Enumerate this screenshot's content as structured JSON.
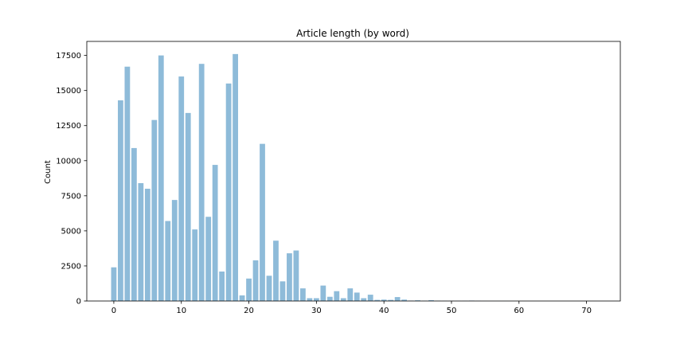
{
  "chart_data": {
    "type": "bar",
    "title": "Article length (by word)",
    "xlabel": "",
    "ylabel": "Count",
    "xlim": [
      -4,
      75
    ],
    "ylim": [
      0,
      18500
    ],
    "xticks": [
      0,
      10,
      20,
      30,
      40,
      50,
      60,
      70
    ],
    "yticks": [
      0,
      2500,
      5000,
      7500,
      10000,
      12500,
      15000,
      17500
    ],
    "bar_color": "#8ebbd9",
    "grid": false,
    "x": [
      0,
      1,
      2,
      3,
      4,
      5,
      6,
      7,
      8,
      9,
      10,
      11,
      12,
      13,
      14,
      15,
      16,
      17,
      18,
      19,
      20,
      21,
      22,
      23,
      24,
      25,
      26,
      27,
      28,
      29,
      30,
      31,
      32,
      33,
      34,
      35,
      36,
      37,
      38,
      39,
      40,
      41,
      42,
      43,
      44,
      45,
      46,
      47,
      48,
      49,
      50,
      51,
      52,
      53,
      54,
      55,
      56,
      57,
      58,
      59,
      60,
      61,
      62,
      63,
      64,
      65,
      66,
      67,
      68,
      69,
      70,
      71,
      72
    ],
    "values": [
      2400,
      14300,
      16700,
      10900,
      8400,
      8000,
      12900,
      17500,
      5700,
      7200,
      16000,
      13400,
      5100,
      16900,
      6000,
      9700,
      2100,
      15500,
      17600,
      400,
      1600,
      2900,
      11200,
      1800,
      4300,
      1400,
      3400,
      3600,
      900,
      200,
      200,
      1100,
      300,
      700,
      200,
      900,
      600,
      200,
      450,
      80,
      100,
      80,
      280,
      100,
      30,
      50,
      20,
      60,
      20,
      10,
      10,
      10,
      10,
      30,
      10,
      5,
      5,
      5,
      5,
      5,
      0,
      0,
      0,
      0,
      0,
      0,
      0,
      0,
      0,
      0,
      0,
      0,
      0
    ]
  }
}
